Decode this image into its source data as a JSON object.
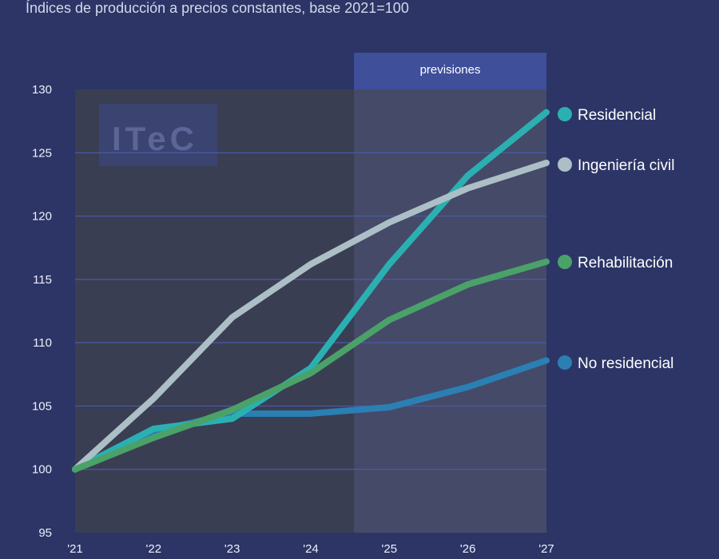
{
  "subtitle": "Índices de producción a precios constantes, base 2021=100",
  "watermark": "ITeC",
  "chart_data": {
    "type": "line",
    "title": "",
    "subtitle": "Índices de producción a precios constantes, base 2021=100",
    "xlabel": "",
    "ylabel": "",
    "categories": [
      "'21",
      "'22",
      "'23",
      "'24",
      "'25",
      "'26",
      "'27"
    ],
    "ylim": [
      95,
      130
    ],
    "yticks": [
      95,
      100,
      105,
      110,
      115,
      120,
      125,
      130
    ],
    "grid": true,
    "forecast_band": {
      "label": "previsiones",
      "from": "'24",
      "offset_fraction": 0.55
    },
    "legend_position": "right",
    "series": [
      {
        "name": "Residencial",
        "color": "#2bb0b2",
        "values": [
          100,
          103.2,
          104.0,
          108.0,
          116.2,
          123.2,
          128.2
        ]
      },
      {
        "name": "Ingeniería civil",
        "color": "#adbfc6",
        "values": [
          100,
          105.6,
          112.0,
          116.2,
          119.5,
          122.2,
          124.2
        ]
      },
      {
        "name": "Rehabilitación",
        "color": "#4aa268",
        "values": [
          100,
          102.5,
          104.7,
          107.6,
          111.8,
          114.6,
          116.4
        ]
      },
      {
        "name": "No residencial",
        "color": "#2a7fb3",
        "values": [
          100,
          103.0,
          104.4,
          104.4,
          104.9,
          106.5,
          108.6
        ]
      }
    ]
  }
}
